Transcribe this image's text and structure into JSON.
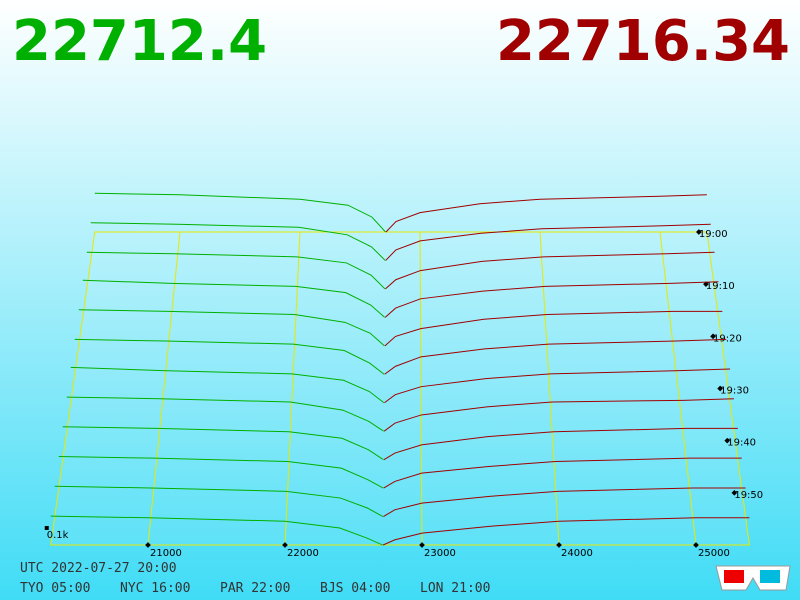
{
  "chart_data": {
    "type": "depth3d",
    "bid_price": 22712.4,
    "ask_price": 22716.34,
    "bid_color": "#00b000",
    "ask_color": "#a00000",
    "xlim": [
      20290,
      25390
    ],
    "xticks": [
      21000,
      22000,
      23000,
      24000,
      25000
    ],
    "zticks": [
      {
        "value": 0.1,
        "label": "0.1k"
      }
    ],
    "time_ticks": [
      "19:00",
      "19:10",
      "19:20",
      "19:30",
      "19:40",
      "19:50"
    ],
    "bid_prices": [
      20290,
      21000,
      22000,
      22400,
      22600,
      22712.4
    ],
    "ask_prices": [
      22716.34,
      22800,
      23000,
      23500,
      24000,
      25000,
      25390
    ],
    "slices": [
      {
        "bid": [
          0.26,
          0.25,
          0.22,
          0.18,
          0.1,
          0
        ],
        "ask": [
          0,
          0.07,
          0.13,
          0.19,
          0.22,
          0.24,
          0.25
        ]
      },
      {
        "bid": [
          0.25,
          0.24,
          0.22,
          0.17,
          0.09,
          0
        ],
        "ask": [
          0,
          0.07,
          0.13,
          0.18,
          0.21,
          0.23,
          0.24
        ]
      },
      {
        "bid": [
          0.24,
          0.23,
          0.21,
          0.17,
          0.09,
          0
        ],
        "ask": [
          0,
          0.06,
          0.12,
          0.18,
          0.21,
          0.23,
          0.24
        ]
      },
      {
        "bid": [
          0.24,
          0.22,
          0.2,
          0.16,
          0.08,
          0
        ],
        "ask": [
          0,
          0.06,
          0.12,
          0.17,
          0.2,
          0.22,
          0.23
        ]
      },
      {
        "bid": [
          0.23,
          0.22,
          0.2,
          0.15,
          0.08,
          0
        ],
        "ask": [
          0,
          0.06,
          0.11,
          0.17,
          0.2,
          0.22,
          0.22
        ]
      },
      {
        "bid": [
          0.22,
          0.21,
          0.19,
          0.15,
          0.07,
          0
        ],
        "ask": [
          0,
          0.05,
          0.11,
          0.16,
          0.19,
          0.21,
          0.22
        ]
      },
      {
        "bid": [
          0.22,
          0.2,
          0.18,
          0.14,
          0.07,
          0
        ],
        "ask": [
          0,
          0.05,
          0.1,
          0.15,
          0.18,
          0.2,
          0.21
        ]
      },
      {
        "bid": [
          0.21,
          0.2,
          0.18,
          0.13,
          0.06,
          0
        ],
        "ask": [
          0,
          0.05,
          0.1,
          0.15,
          0.18,
          0.19,
          0.2
        ]
      },
      {
        "bid": [
          0.2,
          0.19,
          0.17,
          0.13,
          0.06,
          0
        ],
        "ask": [
          0,
          0.04,
          0.09,
          0.14,
          0.17,
          0.19,
          0.19
        ]
      },
      {
        "bid": [
          0.19,
          0.18,
          0.16,
          0.12,
          0.05,
          0
        ],
        "ask": [
          0,
          0.04,
          0.09,
          0.13,
          0.16,
          0.18,
          0.18
        ]
      },
      {
        "bid": [
          0.18,
          0.17,
          0.15,
          0.11,
          0.05,
          0
        ],
        "ask": [
          0,
          0.04,
          0.08,
          0.12,
          0.15,
          0.17,
          0.17
        ]
      },
      {
        "bid": [
          0.17,
          0.16,
          0.14,
          0.1,
          0.04,
          0
        ],
        "ask": [
          0,
          0.03,
          0.07,
          0.11,
          0.14,
          0.16,
          0.16
        ]
      }
    ],
    "utc_line": "UTC 2022-07-27 20:00",
    "zones": [
      "TYO 05:00",
      "NYC 16:00",
      "PAR 22:00",
      "BJS 04:00",
      "LON 21:00"
    ]
  }
}
